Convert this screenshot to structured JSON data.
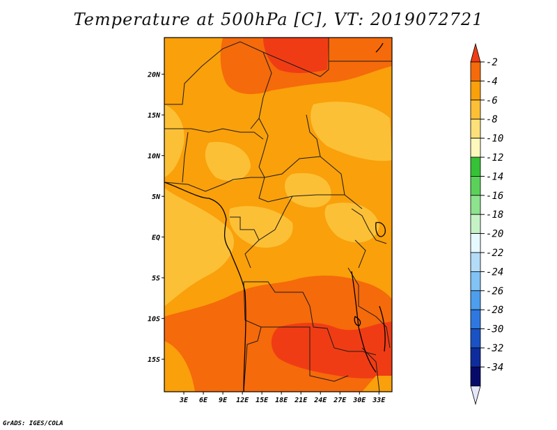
{
  "title": "Temperature at 500hPa [C], VT: 2019072721",
  "credit": "GrADS: IGES/COLA",
  "x_ticks": [
    "3E",
    "6E",
    "9E",
    "12E",
    "15E",
    "18E",
    "21E",
    "24E",
    "27E",
    "30E",
    "33E"
  ],
  "y_ticks": [
    "20N",
    "15N",
    "10N",
    "5N",
    "EQ",
    "5S",
    "10S",
    "15S"
  ],
  "colorbar": {
    "labels": [
      "-2",
      "-4",
      "-6",
      "-8",
      "-10",
      "-12",
      "-14",
      "-16",
      "-18",
      "-20",
      "-22",
      "-24",
      "-26",
      "-28",
      "-30",
      "-32",
      "-34"
    ],
    "colors": [
      "#f03c14",
      "#f56a0a",
      "#f9a00a",
      "#fcc036",
      "#fde07a",
      "#fef8bc",
      "#36c236",
      "#5ad25a",
      "#8ee38e",
      "#c6f3c6",
      "#e6f9ff",
      "#b4dcf8",
      "#82c2f4",
      "#4e9eee",
      "#2e78e0",
      "#1a52c4",
      "#0e2c9c",
      "#080a6a"
    ],
    "extend_low_color": "#e6e6fb"
  },
  "map": {
    "region": "Central and southern Africa",
    "lon_range": [
      0,
      35
    ],
    "lat_range": [
      -19,
      24.5
    ],
    "field": "Temperature at 500hPa",
    "units": "C"
  }
}
